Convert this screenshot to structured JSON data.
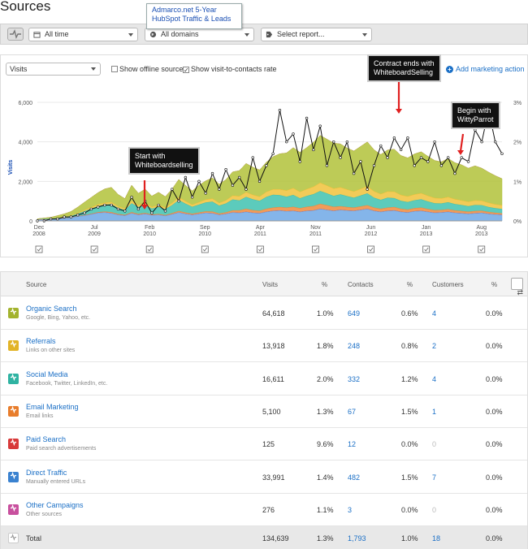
{
  "page": {
    "title": "Sources"
  },
  "callout_top": {
    "line1": "Admarco.net 5-Year",
    "line2": "HubSpot Traffic & Leads"
  },
  "filters": {
    "time": "All time",
    "domains": "All domains",
    "report": "Select report..."
  },
  "controls": {
    "metric": "Visits",
    "offline_label": "Show offline sources",
    "offline_checked": false,
    "rate_label": "Show visit-to-contacts rate",
    "rate_checked": true,
    "add_action": "Add marketing action"
  },
  "annotations": [
    {
      "line1": "Start with",
      "line2": "Whiteboardselling"
    },
    {
      "line1": "Contract ends with",
      "line2": "WhiteboardSelling"
    },
    {
      "line1": "Begin with",
      "line2": "WittyParrot"
    }
  ],
  "chart_data": {
    "type": "area",
    "ylabel": "Visits",
    "ylim": [
      0,
      6000
    ],
    "yticks": [
      "0",
      "2,000",
      "4,000",
      "6,000"
    ],
    "y2lim": [
      0,
      3
    ],
    "y2ticks": [
      "0%",
      "1%",
      "2%",
      "3%"
    ],
    "x_ticks": [
      {
        "month": "Dec",
        "year": "2008"
      },
      {
        "month": "Jul",
        "year": "2009"
      },
      {
        "month": "Feb",
        "year": "2010"
      },
      {
        "month": "Sep",
        "year": "2010"
      },
      {
        "month": "Apr",
        "year": "2011"
      },
      {
        "month": "Nov",
        "year": "2011"
      },
      {
        "month": "Jun",
        "year": "2012"
      },
      {
        "month": "Jan",
        "year": "2013"
      },
      {
        "month": "Aug",
        "year": "2013"
      }
    ],
    "colors": {
      "organic": "#b2c23a",
      "referrals": "#f0c23b",
      "social": "#3fc2b0",
      "email": "#f08a3c",
      "paid": "#e04545",
      "direct": "#6fa8e6",
      "other": "#d86ab4",
      "rate": "#111111"
    },
    "series": [
      {
        "name": "Direct Traffic",
        "key": "direct",
        "values": [
          50,
          60,
          70,
          100,
          120,
          160,
          220,
          260,
          330,
          400,
          420,
          380,
          300,
          260,
          380,
          300,
          350,
          280,
          300,
          250,
          330,
          420,
          350,
          300,
          350,
          400,
          380,
          300,
          350,
          420,
          400,
          450,
          400,
          380,
          450,
          500,
          520,
          480,
          500,
          450,
          500,
          520,
          600,
          550,
          500,
          550,
          520,
          500,
          550,
          600,
          500,
          450,
          500,
          520,
          450,
          420,
          480,
          500,
          450,
          400,
          420,
          450,
          400,
          380,
          350,
          380,
          400,
          350,
          320,
          300
        ]
      },
      {
        "name": "Paid Search",
        "key": "paid",
        "values": [
          5,
          5,
          5,
          5,
          5,
          5,
          5,
          5,
          5,
          5,
          5,
          5,
          5,
          5,
          5,
          5,
          5,
          5,
          5,
          5,
          5,
          5,
          5,
          5,
          5,
          5,
          5,
          5,
          5,
          5,
          5,
          5,
          5,
          5,
          5,
          5,
          5,
          5,
          5,
          5,
          5,
          5,
          5,
          5,
          5,
          5,
          5,
          5,
          5,
          5,
          5,
          5,
          5,
          5,
          5,
          5,
          5,
          5,
          5,
          5,
          5,
          5,
          5,
          5,
          5,
          5,
          5,
          5,
          5,
          5
        ]
      },
      {
        "name": "Email Marketing",
        "key": "email",
        "values": [
          0,
          0,
          0,
          0,
          0,
          0,
          10,
          20,
          20,
          30,
          40,
          50,
          40,
          30,
          50,
          40,
          40,
          30,
          40,
          30,
          50,
          70,
          60,
          50,
          60,
          70,
          80,
          60,
          70,
          100,
          120,
          150,
          130,
          120,
          150,
          160,
          170,
          180,
          200,
          180,
          200,
          220,
          250,
          230,
          200,
          180,
          170,
          160,
          170,
          180,
          160,
          150,
          160,
          170,
          150,
          140,
          150,
          160,
          140,
          130,
          120,
          130,
          120,
          110,
          100,
          110,
          100,
          90,
          80,
          70
        ]
      },
      {
        "name": "Social Media",
        "key": "social",
        "values": [
          20,
          30,
          30,
          40,
          60,
          80,
          120,
          200,
          250,
          300,
          350,
          400,
          300,
          250,
          450,
          350,
          400,
          300,
          350,
          300,
          400,
          550,
          450,
          350,
          400,
          450,
          500,
          400,
          450,
          550,
          500,
          600,
          550,
          500,
          600,
          650,
          600,
          550,
          600,
          500,
          550,
          600,
          650,
          600,
          550,
          600,
          550,
          500,
          550,
          600,
          500,
          450,
          500,
          450,
          400,
          380,
          400,
          420,
          380,
          350,
          330,
          350,
          320,
          300,
          280,
          300,
          280,
          250,
          230,
          220
        ]
      },
      {
        "name": "Referrals",
        "key": "referrals",
        "values": [
          10,
          10,
          15,
          20,
          20,
          30,
          40,
          60,
          80,
          90,
          100,
          110,
          90,
          80,
          120,
          100,
          110,
          90,
          100,
          90,
          120,
          150,
          130,
          110,
          130,
          150,
          160,
          140,
          160,
          200,
          220,
          250,
          230,
          220,
          260,
          280,
          300,
          320,
          350,
          330,
          350,
          380,
          420,
          400,
          380,
          360,
          340,
          320,
          340,
          360,
          330,
          300,
          320,
          330,
          300,
          290,
          300,
          310,
          290,
          270,
          260,
          270,
          250,
          240,
          230,
          240,
          230,
          220,
          200,
          190
        ]
      },
      {
        "name": "Organic Search",
        "key": "organic",
        "values": [
          20,
          40,
          60,
          100,
          150,
          200,
          300,
          400,
          500,
          600,
          700,
          750,
          600,
          500,
          800,
          600,
          700,
          550,
          650,
          550,
          700,
          900,
          800,
          700,
          850,
          950,
          1050,
          950,
          1050,
          1200,
          1300,
          1450,
          1400,
          1350,
          1500,
          1650,
          1800,
          1900,
          2050,
          2000,
          2100,
          2250,
          2400,
          2350,
          2300,
          2200,
          2100,
          2050,
          2150,
          2250,
          2100,
          2000,
          2100,
          2150,
          2000,
          1950,
          2050,
          2100,
          2000,
          1900,
          1850,
          1950,
          1850,
          1800,
          1700,
          1750,
          1650,
          1550,
          1450,
          1350
        ]
      },
      {
        "name": "Other Campaigns",
        "key": "other",
        "values": [
          0,
          0,
          0,
          0,
          0,
          0,
          0,
          0,
          0,
          0,
          0,
          0,
          0,
          0,
          0,
          0,
          0,
          0,
          0,
          0,
          0,
          0,
          0,
          0,
          0,
          0,
          0,
          0,
          0,
          0,
          0,
          0,
          0,
          0,
          0,
          0,
          0,
          0,
          0,
          0,
          0,
          0,
          0,
          0,
          0,
          0,
          0,
          0,
          0,
          0,
          0,
          0,
          0,
          0,
          0,
          0,
          0,
          0,
          0,
          0,
          0,
          0,
          0,
          0,
          0,
          0,
          0,
          0,
          0,
          0
        ]
      }
    ],
    "rate_series": {
      "name": "visit-to-contacts rate",
      "values": [
        0,
        0,
        0.05,
        0.05,
        0.1,
        0.1,
        0.15,
        0.2,
        0.3,
        0.35,
        0.4,
        0.4,
        0.3,
        0.25,
        0.6,
        0.3,
        0.5,
        0.2,
        0.4,
        0.25,
        0.8,
        0.5,
        1.1,
        0.6,
        1.0,
        0.7,
        1.2,
        0.8,
        1.3,
        0.9,
        1.1,
        0.8,
        1.6,
        1.0,
        1.4,
        1.7,
        2.8,
        2.0,
        2.2,
        1.5,
        2.6,
        1.8,
        2.4,
        1.4,
        2.0,
        1.6,
        2.0,
        1.2,
        1.5,
        0.8,
        1.4,
        1.9,
        1.6,
        2.1,
        1.8,
        2.1,
        1.4,
        1.6,
        1.5,
        2.0,
        1.4,
        1.6,
        1.2,
        1.6,
        1.5,
        2.3,
        2.0,
        2.8,
        2.0,
        1.7
      ]
    }
  },
  "table": {
    "headers": {
      "source": "Source",
      "visits": "Visits",
      "visits_pct": "%",
      "contacts": "Contacts",
      "contacts_pct": "%",
      "customers": "Customers",
      "customers_pct": "%"
    },
    "rows": [
      {
        "icon_color": "#a3b32e",
        "name": "Organic Search",
        "desc": "Google, Bing, Yahoo, etc.",
        "visits": "64,618",
        "visits_pct": "1.0%",
        "contacts": "649",
        "contacts_pct": "0.6%",
        "customers": "4",
        "customers_pct": "0.0%",
        "customers_muted": false
      },
      {
        "icon_color": "#e2b428",
        "name": "Referrals",
        "desc": "Links on other sites",
        "visits": "13,918",
        "visits_pct": "1.8%",
        "contacts": "248",
        "contacts_pct": "0.8%",
        "customers": "2",
        "customers_pct": "0.0%",
        "customers_muted": false
      },
      {
        "icon_color": "#2fb3a2",
        "name": "Social Media",
        "desc": "Facebook, Twitter, LinkedIn, etc.",
        "visits": "16,611",
        "visits_pct": "2.0%",
        "contacts": "332",
        "contacts_pct": "1.2%",
        "customers": "4",
        "customers_pct": "0.0%",
        "customers_muted": false
      },
      {
        "icon_color": "#e87d2c",
        "name": "Email Marketing",
        "desc": "Email links",
        "visits": "5,100",
        "visits_pct": "1.3%",
        "contacts": "67",
        "contacts_pct": "1.5%",
        "customers": "1",
        "customers_pct": "0.0%",
        "customers_muted": false
      },
      {
        "icon_color": "#d83a3a",
        "name": "Paid Search",
        "desc": "Paid search advertisements",
        "visits": "125",
        "visits_pct": "9.6%",
        "contacts": "12",
        "contacts_pct": "0.0%",
        "customers": "0",
        "customers_pct": "0.0%",
        "customers_muted": true
      },
      {
        "icon_color": "#3a82d0",
        "name": "Direct Traffic",
        "desc": "Manually entered URLs",
        "visits": "33,991",
        "visits_pct": "1.4%",
        "contacts": "482",
        "contacts_pct": "1.5%",
        "customers": "7",
        "customers_pct": "0.0%",
        "customers_muted": false
      },
      {
        "icon_color": "#c8509e",
        "name": "Other Campaigns",
        "desc": "Other sources",
        "visits": "276",
        "visits_pct": "1.1%",
        "contacts": "3",
        "contacts_pct": "0.0%",
        "customers": "0",
        "customers_pct": "0.0%",
        "customers_muted": true
      }
    ],
    "total": {
      "name": "Total",
      "visits": "134,639",
      "visits_pct": "1.3%",
      "contacts": "1,793",
      "contacts_pct": "1.0%",
      "customers": "18",
      "customers_pct": "0.0%"
    }
  }
}
